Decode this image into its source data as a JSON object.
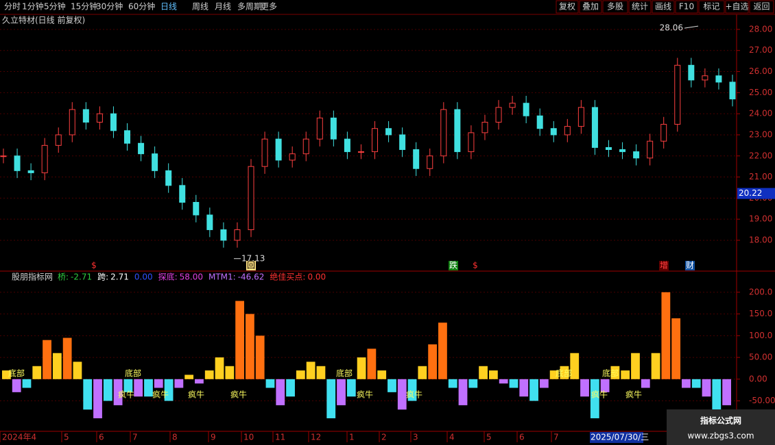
{
  "toolbar": {
    "periods": [
      "分时",
      "1分钟",
      "5分钟",
      "15分钟",
      "30分钟",
      "60分钟",
      "日线",
      "周线",
      "月线",
      "多周期",
      "更多"
    ],
    "actions": [
      "复权",
      "叠加",
      "多股",
      "统计",
      "画线",
      "F10",
      "标记",
      "+自选",
      "返回"
    ]
  },
  "main": {
    "title": "久立特材(日线 前复权)",
    "ylim": [
      16.57,
      28.68
    ],
    "yticks": [
      {
        "value": 28,
        "label": "28.00"
      },
      {
        "value": 27,
        "label": "27.00"
      },
      {
        "value": 26,
        "label": "26.00"
      },
      {
        "value": 25,
        "label": "25.00"
      },
      {
        "value": 24,
        "label": "24.00"
      },
      {
        "value": 23,
        "label": "23.00"
      },
      {
        "value": 22,
        "label": "22.00"
      },
      {
        "value": 21,
        "label": "21.00"
      },
      {
        "value": 20,
        "label": "20.00"
      },
      {
        "value": 19,
        "label": "19.00"
      },
      {
        "value": 18,
        "label": "18.00"
      }
    ],
    "closes": [
      22.0,
      21.3,
      21.2,
      22.5,
      23.0,
      24.2,
      23.6,
      24.0,
      23.2,
      22.6,
      22.1,
      21.3,
      20.6,
      19.8,
      19.2,
      18.5,
      18.0,
      18.5,
      21.5,
      22.8,
      21.8,
      22.1,
      22.8,
      23.8,
      22.8,
      22.2,
      22.2,
      23.3,
      23.0,
      22.3,
      21.4,
      22.0,
      24.2,
      22.2,
      23.1,
      23.6,
      24.3,
      24.5,
      23.9,
      23.3,
      23.0,
      23.4,
      24.3,
      22.4,
      22.3,
      22.2,
      21.9,
      22.7,
      23.5,
      26.3,
      25.6,
      25.8,
      25.5,
      24.7
    ],
    "high": 28.06,
    "low": 17.13,
    "current": 20.22,
    "markers": [
      "$",
      "回",
      "跌",
      "$",
      "增",
      "财"
    ]
  },
  "indicator": {
    "name": "股朋指标网",
    "legend": [
      {
        "label": "桥:",
        "value": "-2.71",
        "color": "#2ecc40"
      },
      {
        "label": "跨:",
        "value": "2.71",
        "color": "#ffffff"
      },
      {
        "label": "",
        "value": "0.00",
        "color": "#3050ff"
      },
      {
        "label": "探底:",
        "value": "58.00",
        "color": "#e040e0"
      },
      {
        "label": "MTM1:",
        "value": "-46.62",
        "color": "#c070ff"
      },
      {
        "label": "绝佳买点:",
        "value": "0.00",
        "color": "#ff3030"
      }
    ],
    "ylim": [
      -120,
      247
    ],
    "yticks": [
      {
        "value": 200,
        "label": "200.0"
      },
      {
        "value": 150,
        "label": "150.0"
      },
      {
        "value": 100,
        "label": "100.0"
      },
      {
        "value": 50,
        "label": "50.00"
      },
      {
        "value": 0,
        "label": "0.00"
      },
      {
        "value": -50,
        "label": "-50.00"
      }
    ],
    "values": [
      20,
      -30,
      -20,
      30,
      90,
      60,
      95,
      40,
      -70,
      -90,
      -50,
      -60,
      -30,
      -40,
      -40,
      -20,
      -50,
      -20,
      10,
      -10,
      20,
      50,
      30,
      180,
      150,
      100,
      -20,
      -60,
      -40,
      20,
      40,
      30,
      -90,
      -60,
      -40,
      50,
      70,
      20,
      -30,
      -70,
      -50,
      30,
      80,
      130,
      -20,
      -60,
      -20,
      30,
      20,
      -10,
      -20,
      -40,
      -50,
      -20,
      20,
      30,
      60,
      -40,
      -90,
      -30,
      30,
      20,
      60,
      -20,
      60,
      200,
      140,
      -20,
      -20,
      -40,
      -80,
      -60
    ],
    "signals": [
      "底部",
      "底部",
      "底部",
      "底部",
      "底部",
      "疯牛",
      "疯牛",
      "疯牛",
      "疯牛",
      "疯牛",
      "疯牛",
      "疯牛",
      "疯牛"
    ]
  },
  "xaxis": [
    "2024年4",
    "5",
    "6",
    "7",
    "8",
    "9",
    "10",
    "11",
    "12",
    "1",
    "2",
    "3",
    "4",
    "5",
    "6",
    "7",
    "2025/07/30/三"
  ],
  "watermark": {
    "title": "指标公式网",
    "url": "www.zbgs3.com"
  }
}
